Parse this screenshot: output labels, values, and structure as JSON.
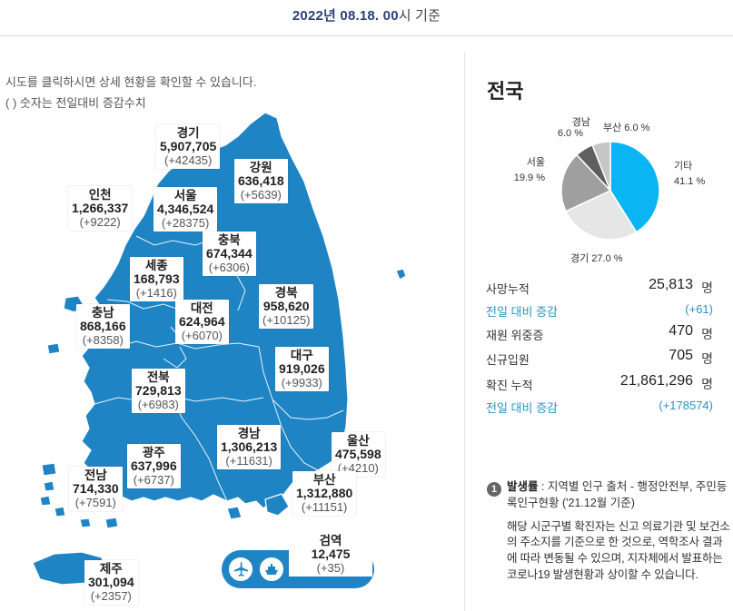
{
  "header": {
    "date": "2022년 08.18. 00",
    "date_suffix": "시 기준"
  },
  "instructions": {
    "line1": "시도를 클릭하시면 상세 현황을 확인할 수 있습니다.",
    "line2": "( ) 숫자는 전일대비 증감수치"
  },
  "colors": {
    "map_fill": "#1f84c4",
    "accent_blue": "#2a93c0",
    "pie_etc": "#0bb5f3",
    "pie_gyeonggi": "#e6e6e6",
    "pie_seoul": "#9f9f9f",
    "pie_gyeongnam": "#5f5f5f",
    "pie_busan": "#c6c6c6"
  },
  "regions": {
    "gyeonggi": {
      "name": "경기",
      "value": "5,907,705",
      "delta": "(+42435)"
    },
    "gangwon": {
      "name": "강원",
      "value": "636,418",
      "delta": "(+5639)"
    },
    "incheon": {
      "name": "인천",
      "value": "1,266,337",
      "delta": "(+9222)"
    },
    "seoul": {
      "name": "서울",
      "value": "4,346,524",
      "delta": "(+28375)"
    },
    "chungbuk": {
      "name": "충북",
      "value": "674,344",
      "delta": "(+6306)"
    },
    "sejong": {
      "name": "세종",
      "value": "168,793",
      "delta": "(+1416)"
    },
    "chungnam": {
      "name": "충남",
      "value": "868,166",
      "delta": "(+8358)"
    },
    "daejeon": {
      "name": "대전",
      "value": "624,964",
      "delta": "(+6070)"
    },
    "gyeongbuk": {
      "name": "경북",
      "value": "958,620",
      "delta": "(+10125)"
    },
    "daegu": {
      "name": "대구",
      "value": "919,026",
      "delta": "(+9933)"
    },
    "jeonbuk": {
      "name": "전북",
      "value": "729,813",
      "delta": "(+6983)"
    },
    "gwangju": {
      "name": "광주",
      "value": "637,996",
      "delta": "(+6737)"
    },
    "gyeongnam": {
      "name": "경남",
      "value": "1,306,213",
      "delta": "(+11631)"
    },
    "ulsan": {
      "name": "울산",
      "value": "475,598",
      "delta": "(+4210)"
    },
    "jeonnam": {
      "name": "전남",
      "value": "714,330",
      "delta": "(+7591)"
    },
    "busan": {
      "name": "부산",
      "value": "1,312,880",
      "delta": "(+11151)"
    },
    "jeju": {
      "name": "제주",
      "value": "301,094",
      "delta": "(+2357)"
    },
    "quarantine": {
      "name": "검역",
      "value": "12,475",
      "delta": "(+35)"
    }
  },
  "transport_icons": [
    "airplane-icon",
    "ship-icon"
  ],
  "side": {
    "title": "전국",
    "pie": {
      "slices": [
        {
          "name": "기타",
          "percent": 41.1,
          "label": "41.1 %"
        },
        {
          "name": "경기",
          "percent": 27.0,
          "label": "27.0 %"
        },
        {
          "name": "서울",
          "percent": 19.9,
          "label": "19.9 %"
        },
        {
          "name": "경남",
          "percent": 6.0,
          "label": "6.0 %"
        },
        {
          "name": "부산",
          "percent": 6.0,
          "label": "6.0 %"
        }
      ]
    },
    "stats": {
      "deaths_label": "사망누적",
      "deaths_value": "25,813",
      "unit": "명",
      "deaths_delta_label": "전일 대비 증감",
      "deaths_delta_value": "(+61)",
      "critical_label": "재원 위중증",
      "critical_value": "470",
      "new_admit_label": "신규입원",
      "new_admit_value": "705",
      "confirmed_label": "확진 누적",
      "confirmed_value": "21,861,296",
      "confirmed_delta_label": "전일 대비 증감",
      "confirmed_delta_value": "(+178574)"
    },
    "note": {
      "badge": "1",
      "title": "발생률",
      "source": " : 지역별 인구 출처 - 행정안전부, 주민등록인구현황 ('21.12월 기준)",
      "body": "해당 시군구별 확진자는 신고 의료기관 및 보건소의 주소지를 기준으로 한 것으로, 역학조사 결과에 따라 변동될 수 있으며, 지자체에서 발표하는 코로나19 발생현황과 상이할 수 있습니다."
    }
  }
}
